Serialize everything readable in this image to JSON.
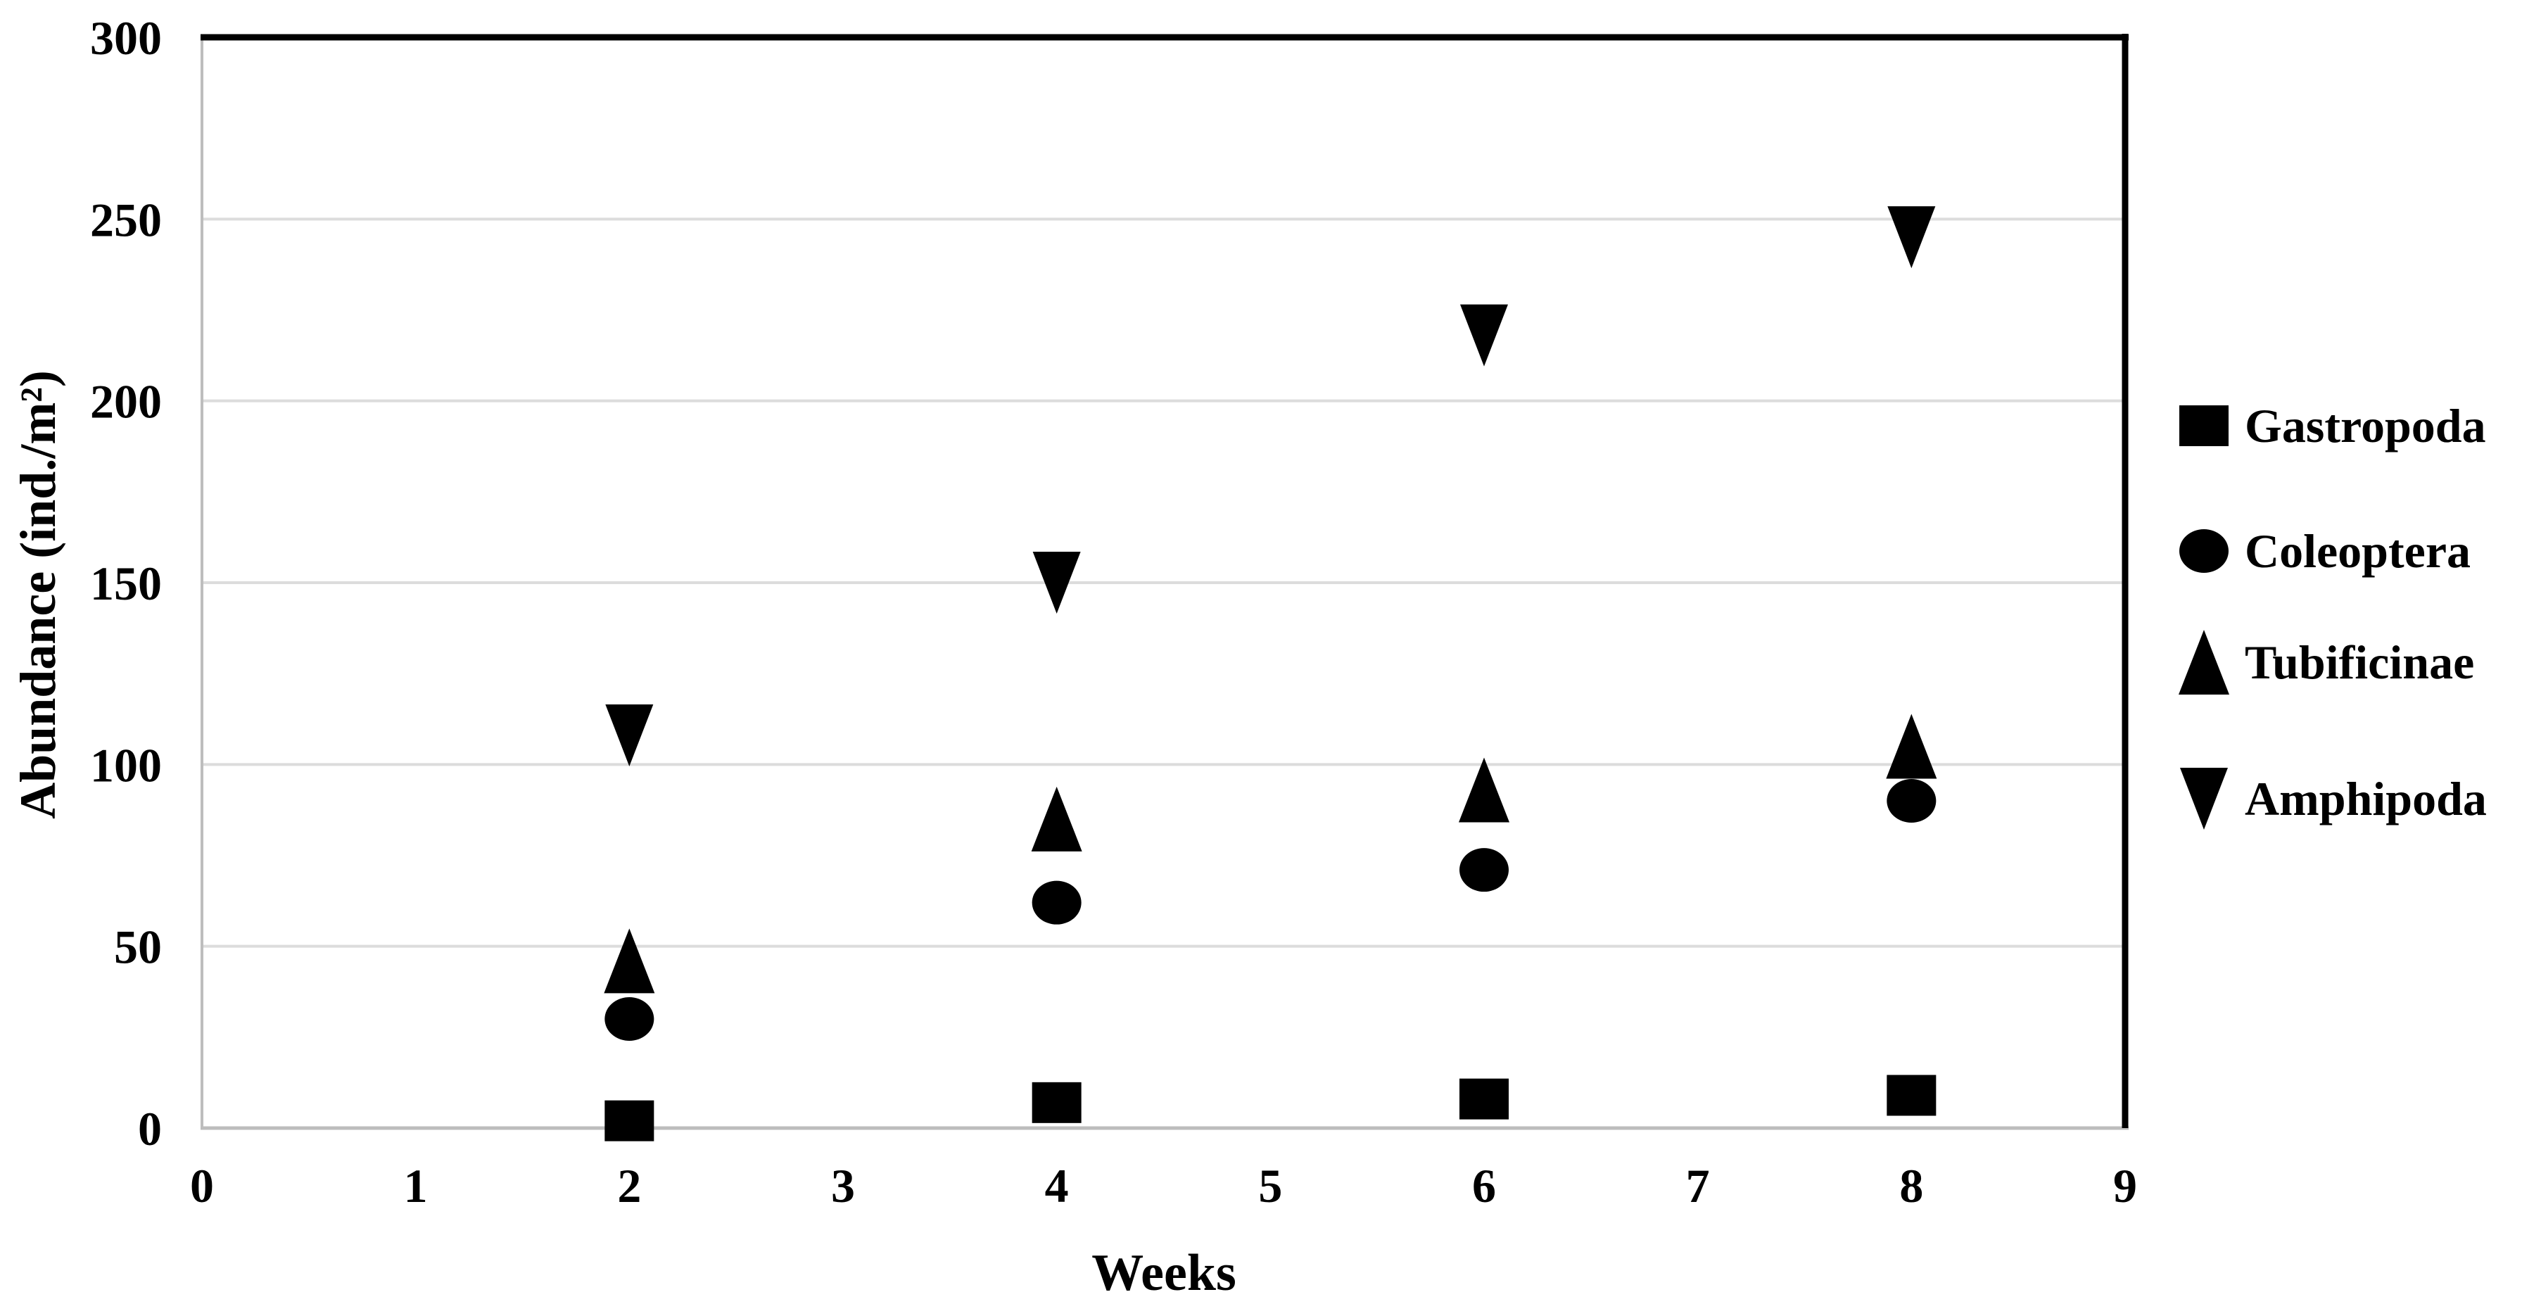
{
  "figure": {
    "background": "#ffffff"
  },
  "chart_data": {
    "type": "scatter",
    "title": "",
    "xlabel": "Weeks",
    "ylabel": "Abundance (ind./m²)",
    "xlim": [
      0,
      9
    ],
    "ylim": [
      0,
      300
    ],
    "xticks": [
      0,
      1,
      2,
      3,
      4,
      5,
      6,
      7,
      8,
      9
    ],
    "yticks": [
      0,
      50,
      100,
      150,
      200,
      250,
      300
    ],
    "grid": "horizontal-only",
    "legend_position": "right-outside",
    "x": [
      2,
      4,
      6,
      8
    ],
    "series": [
      {
        "name": "Gastropoda",
        "marker": "square",
        "values": [
          2,
          7,
          8,
          9
        ]
      },
      {
        "name": "Coleoptera",
        "marker": "circle",
        "values": [
          30,
          62,
          71,
          90
        ]
      },
      {
        "name": "Tubificinae",
        "marker": "triangle-up",
        "values": [
          46,
          85,
          93,
          105
        ]
      },
      {
        "name": "Amphipoda",
        "marker": "triangle-down",
        "values": [
          108,
          150,
          218,
          245
        ]
      }
    ],
    "colors": {
      "marker": "#000000",
      "gridline": "#dcdcdc",
      "axis": "#bdbdbd",
      "frame": "#000000",
      "text": "#000000"
    }
  }
}
